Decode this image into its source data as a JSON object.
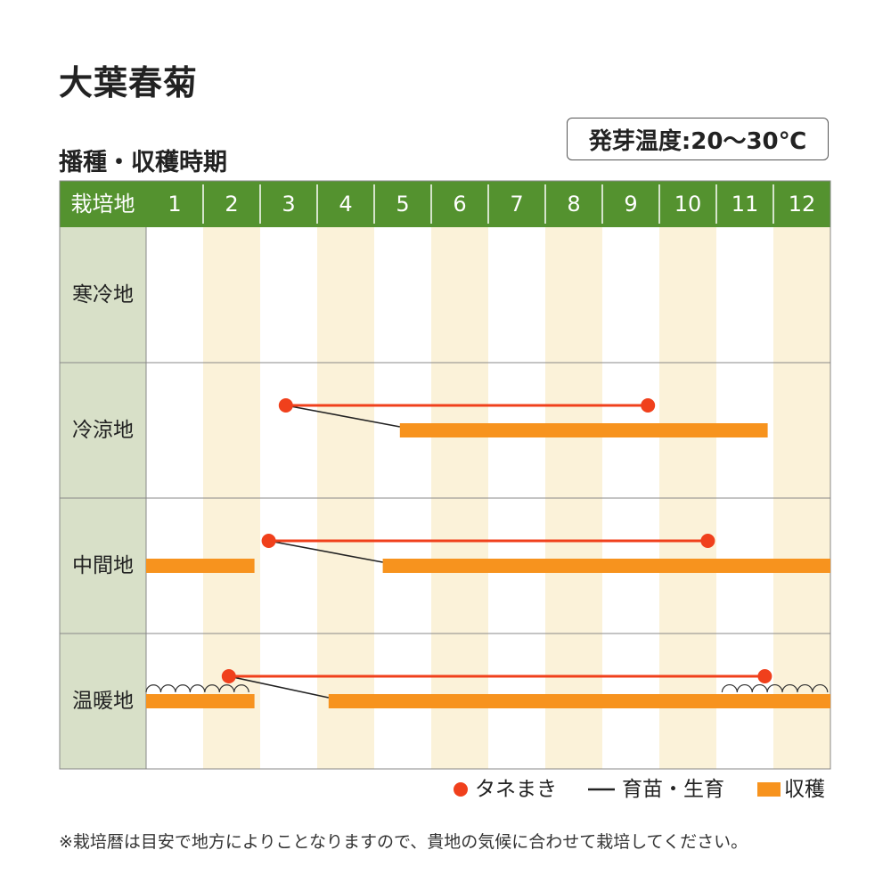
{
  "title": "大葉春菊",
  "subtitle": "播種・収穫時期",
  "temperature_badge": "発芽温度:20〜30℃",
  "footnote": "※栽培暦は目安で地方によりことなりますので、貴地の気候に合わせて栽培してください。",
  "colors": {
    "header_green": "#54922f",
    "region_bg": "#d8e0c8",
    "stripe": "#fbf2d9",
    "sowing": "#f0401c",
    "harvest": "#f7931e",
    "growing": "#222222",
    "grid": "#888888"
  },
  "chart_data": {
    "type": "table",
    "header_label": "栽培地",
    "months": [
      "1",
      "2",
      "3",
      "4",
      "5",
      "6",
      "7",
      "8",
      "9",
      "10",
      "11",
      "12"
    ],
    "legend": [
      {
        "key": "sowing",
        "label": "タネまき",
        "marker": "dot"
      },
      {
        "key": "growing",
        "label": "育苗・生育",
        "marker": "line"
      },
      {
        "key": "harvest",
        "label": "収穫",
        "marker": "bar"
      }
    ],
    "regions": [
      {
        "name": "寒冷地",
        "sowing": null,
        "harvest": [],
        "links": [],
        "covers": []
      },
      {
        "name": "冷涼地",
        "sowing": {
          "start": 3.45,
          "end": 9.8
        },
        "harvest": [
          {
            "start": 5.45,
            "end": 11.9
          }
        ],
        "links": [
          {
            "from": 3.45,
            "to": 5.45
          }
        ],
        "covers": []
      },
      {
        "name": "中間地",
        "sowing": {
          "start": 3.15,
          "end": 10.85
        },
        "harvest": [
          {
            "start": 1.0,
            "end": 2.9
          },
          {
            "start": 5.15,
            "end": 13.0
          }
        ],
        "links": [
          {
            "from": 3.15,
            "to": 5.15
          }
        ],
        "covers": []
      },
      {
        "name": "温暖地",
        "sowing": {
          "start": 2.45,
          "end": 11.85
        },
        "harvest": [
          {
            "start": 1.0,
            "end": 2.9
          },
          {
            "start": 4.2,
            "end": 13.0
          }
        ],
        "links": [
          {
            "from": 2.45,
            "to": 4.2
          }
        ],
        "covers": [
          {
            "start": 1.0,
            "end": 2.8
          },
          {
            "start": 11.1,
            "end": 12.95
          }
        ]
      }
    ]
  }
}
